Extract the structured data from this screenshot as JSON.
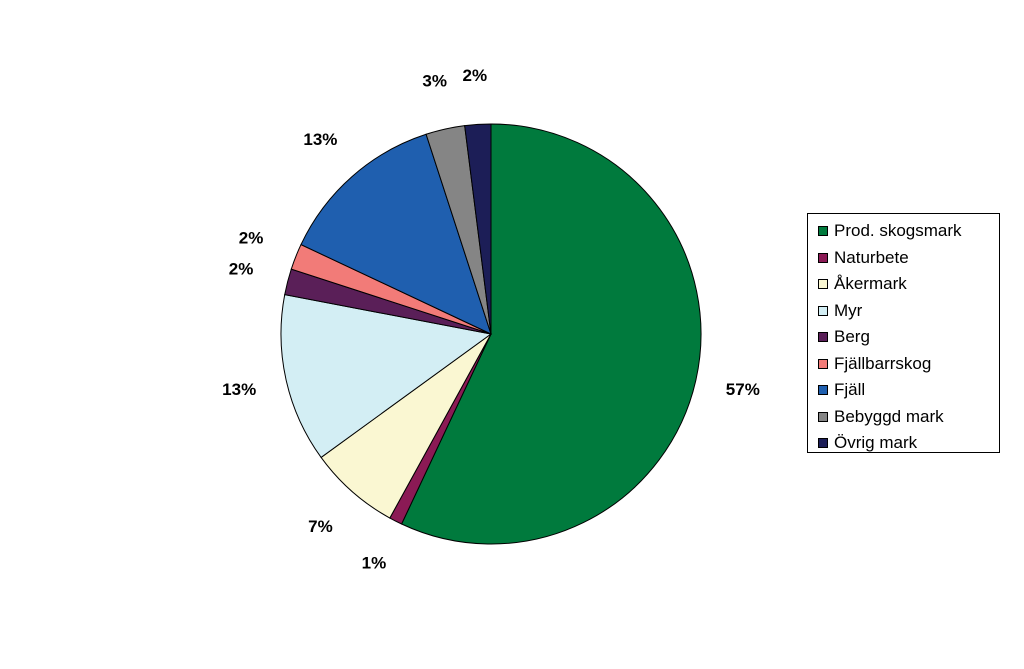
{
  "chart_data": {
    "type": "pie",
    "title": "",
    "legend_position": "right",
    "start_angle_deg": 0,
    "direction": "clockwise",
    "slices": [
      {
        "name": "Prod. skogsmark",
        "value": 57,
        "label": "57%",
        "color": "#007A3D"
      },
      {
        "name": "Naturbete",
        "value": 1,
        "label": "1%",
        "color": "#8B1A55"
      },
      {
        "name": "Åkermark",
        "value": 7,
        "label": "7%",
        "color": "#FAF7D2"
      },
      {
        "name": "Myr",
        "value": 13,
        "label": "13%",
        "color": "#D3EEF4"
      },
      {
        "name": "Berg",
        "value": 2,
        "label": "2%",
        "color": "#5A1F58"
      },
      {
        "name": "Fjällbarrskog",
        "value": 2,
        "label": "2%",
        "color": "#F27B78"
      },
      {
        "name": "Fjäll",
        "value": 13,
        "label": "13%",
        "color": "#1F5FAF"
      },
      {
        "name": "Bebyggd mark",
        "value": 3,
        "label": "3%",
        "color": "#858585"
      },
      {
        "name": "Övrig mark",
        "value": 2,
        "label": "2%",
        "color": "#1C1E57"
      }
    ]
  }
}
